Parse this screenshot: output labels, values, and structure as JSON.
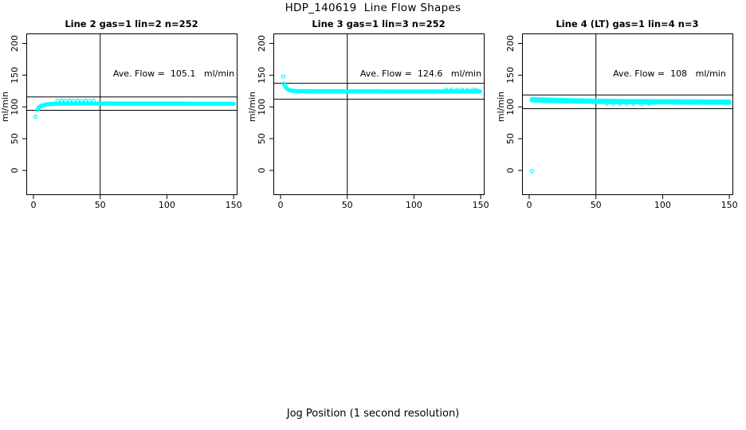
{
  "figure": {
    "title": "HDP_140619  Line Flow Shapes",
    "xlabel": "Jog Position (1 second resolution)",
    "ylabel": "ml/min",
    "background_color": "#ffffff",
    "axis_color": "#000000",
    "marker_color": "#00ffff"
  },
  "chart_data": [
    {
      "type": "scatter",
      "title": "Line 2 gas=1 lin=2 n=252",
      "annotation": "Ave. Flow =  105.1   ml/min",
      "ave_flow": 105.1,
      "n": 252,
      "xlim": [
        0,
        150
      ],
      "ylim": [
        0,
        200
      ],
      "xticks": [
        0,
        50,
        100,
        150
      ],
      "yticks": [
        0,
        50,
        100,
        150,
        200
      ],
      "vline_x": 50,
      "hlines": [
        115.6,
        94.6
      ],
      "stray_points": [
        [
          1.5,
          84.5
        ]
      ],
      "anchors": [
        [
          3,
          95
        ],
        [
          4,
          99
        ],
        [
          5,
          101
        ],
        [
          6,
          102
        ],
        [
          8,
          103.2
        ],
        [
          10,
          104
        ],
        [
          14,
          104.8
        ],
        [
          20,
          105.2
        ],
        [
          40,
          105.3
        ],
        [
          100,
          105.2
        ],
        [
          150,
          105
        ]
      ],
      "extra_points": [
        [
          18,
          109.5
        ],
        [
          21,
          110
        ],
        [
          24,
          109.5
        ],
        [
          27,
          110
        ],
        [
          30,
          109.5
        ],
        [
          33,
          110
        ],
        [
          36,
          109.5
        ],
        [
          39,
          110
        ],
        [
          42,
          109.5
        ],
        [
          45,
          110
        ]
      ],
      "step": 0.6,
      "passes": [
        0
      ]
    },
    {
      "type": "scatter",
      "title": "Line 3 gas=1 lin=3 n=252",
      "annotation": "Ave. Flow =  124.6   ml/min",
      "ave_flow": 124.6,
      "n": 252,
      "xlim": [
        0,
        150
      ],
      "ylim": [
        0,
        200
      ],
      "xticks": [
        0,
        50,
        100,
        150
      ],
      "yticks": [
        0,
        50,
        100,
        150,
        200
      ],
      "vline_x": 50,
      "hlines": [
        137.1,
        112.1
      ],
      "stray_points": [
        [
          2,
          148
        ]
      ],
      "anchors": [
        [
          2.5,
          137
        ],
        [
          4,
          130.5
        ],
        [
          5,
          128.5
        ],
        [
          6,
          127
        ],
        [
          8,
          125.6
        ],
        [
          12,
          125
        ],
        [
          20,
          124.7
        ],
        [
          60,
          124.5
        ],
        [
          150,
          124.2
        ]
      ],
      "extra_points": [
        [
          124,
          127
        ],
        [
          128,
          127.2
        ],
        [
          132,
          126.9
        ],
        [
          136,
          127.1
        ],
        [
          140,
          127
        ],
        [
          144,
          127.2
        ],
        [
          147,
          126.9
        ]
      ],
      "step": 0.6,
      "passes": [
        0
      ]
    },
    {
      "type": "scatter",
      "title": "Line 4 (LT) gas=1 lin=4 n=3",
      "annotation": "Ave. Flow =  108   ml/min",
      "ave_flow": 108,
      "n": 3,
      "xlim": [
        0,
        150
      ],
      "ylim": [
        0,
        200
      ],
      "xticks": [
        0,
        50,
        100,
        150
      ],
      "yticks": [
        0,
        50,
        100,
        150,
        200
      ],
      "vline_x": 50,
      "hlines": [
        118.8,
        97.2
      ],
      "stray_points": [
        [
          2,
          -1
        ]
      ],
      "anchors": [
        [
          2,
          111.3
        ],
        [
          6,
          111
        ],
        [
          12,
          110.6
        ],
        [
          20,
          110.2
        ],
        [
          35,
          109.4
        ],
        [
          50,
          108.9
        ],
        [
          70,
          108.4
        ],
        [
          100,
          108
        ],
        [
          150,
          107.6
        ]
      ],
      "extra_points": [
        [
          58,
          104.8
        ],
        [
          63,
          104.5
        ],
        [
          68,
          105
        ],
        [
          73,
          104.5
        ],
        [
          78,
          104.8
        ],
        [
          84,
          104.6
        ],
        [
          90,
          105
        ]
      ],
      "step": 1,
      "passes": [
        -1,
        0,
        1
      ]
    }
  ]
}
